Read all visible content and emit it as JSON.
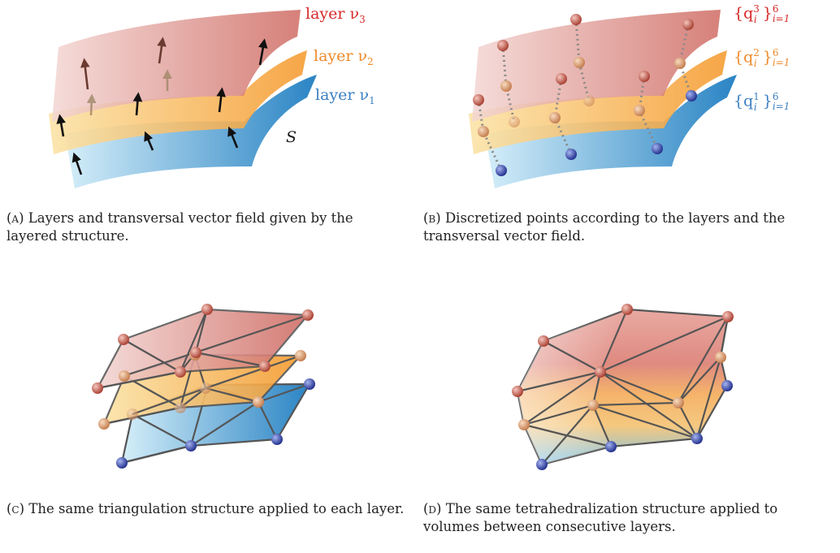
{
  "panel_a": {
    "labels": {
      "layer3": "layer ν",
      "layer3_sub": "3",
      "layer2": "layer ν",
      "layer2_sub": "2",
      "layer1": "layer ν",
      "layer1_sub": "1",
      "surface": "S"
    },
    "caption": {
      "tag": "(a)",
      "text": "Layers and transversal vector field given by the layered structure."
    }
  },
  "panel_b": {
    "labels": {
      "set3": "{q",
      "set3_sup": "3",
      "set3_tail": "}",
      "set3_range": "6",
      "set3_idx": "i=1",
      "set2": "{q",
      "set2_sup": "2",
      "set2_tail": "}",
      "set2_range": "6",
      "set2_idx": "i=1",
      "set1": "{q",
      "set1_sup": "1",
      "set1_tail": "}",
      "set1_range": "6",
      "set1_idx": "i=1",
      "index": "i"
    },
    "caption": {
      "tag": "(b)",
      "text": "Discretized points according to the layers and the transversal vector field."
    }
  },
  "panel_c": {
    "caption": {
      "tag": "(c)",
      "text": "The same triangulation structure applied to each layer."
    }
  },
  "panel_d": {
    "caption": {
      "tag": "(d)",
      "text": "The same tetrahedralization structure applied to volumes between consecutive layers."
    }
  },
  "colors": {
    "layer3": "#d2524a",
    "layer2": "#f0a040",
    "layer1": "#2f86c6",
    "label3": "#d62a28",
    "label2": "#ef8a2b",
    "label1": "#3b7fc0",
    "edge": "#555555"
  }
}
